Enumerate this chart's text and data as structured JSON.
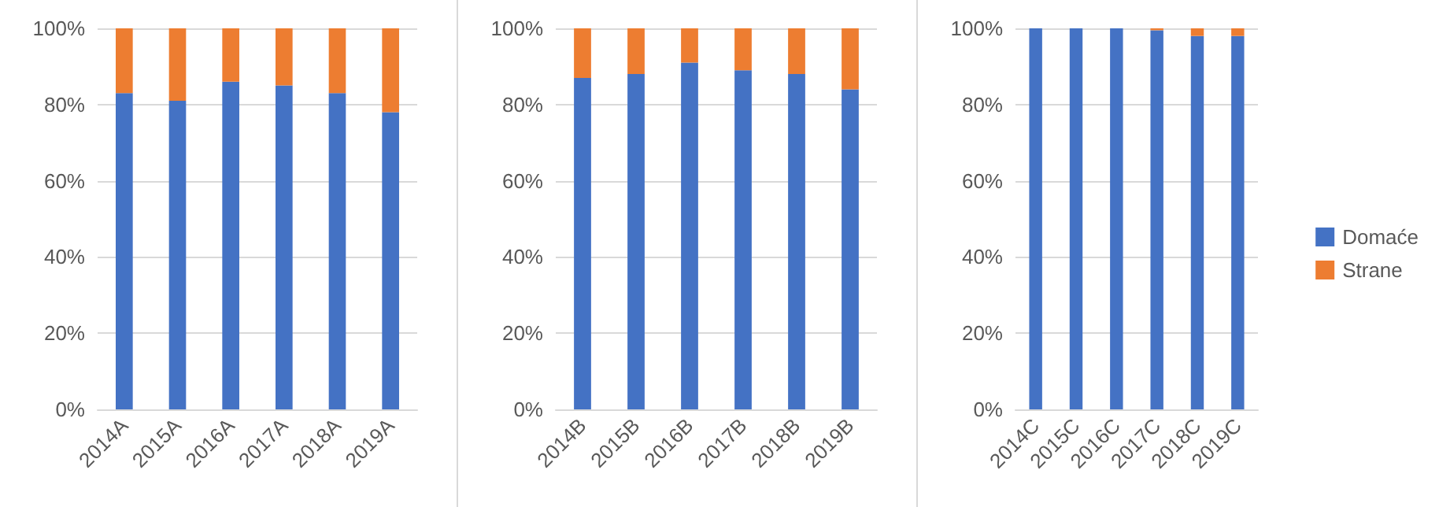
{
  "chart_data": [
    {
      "type": "bar",
      "stacked": true,
      "categories": [
        "2014A",
        "2015A",
        "2016A",
        "2017A",
        "2018A",
        "2019A"
      ],
      "series": [
        {
          "color": "#4472c4",
          "values": [
            83,
            81,
            86,
            85,
            83,
            78
          ]
        },
        {
          "color": "#ed7d31",
          "values": [
            17,
            19,
            14,
            15,
            17,
            22
          ]
        }
      ],
      "ylim": [
        0,
        100
      ],
      "yticks": [
        {
          "value": 0,
          "label": "0%"
        },
        {
          "value": 20,
          "label": "20%"
        },
        {
          "value": 40,
          "label": "40%"
        },
        {
          "value": 60,
          "label": "60%"
        },
        {
          "value": 80,
          "label": "80%"
        },
        {
          "value": 100,
          "label": "100%"
        }
      ],
      "grid": "y",
      "legend": false
    },
    {
      "type": "bar",
      "stacked": true,
      "categories": [
        "2014B",
        "2015B",
        "2016B",
        "2017B",
        "2018B",
        "2019B"
      ],
      "series": [
        {
          "color": "#4472c4",
          "values": [
            87,
            88,
            91,
            89,
            88,
            84
          ]
        },
        {
          "color": "#ed7d31",
          "values": [
            13,
            12,
            9,
            11,
            12,
            16
          ]
        }
      ],
      "ylim": [
        0,
        100
      ],
      "yticks": [
        {
          "value": 0,
          "label": "0%"
        },
        {
          "value": 20,
          "label": "20%"
        },
        {
          "value": 40,
          "label": "40%"
        },
        {
          "value": 60,
          "label": "60%"
        },
        {
          "value": 80,
          "label": "80%"
        },
        {
          "value": 100,
          "label": "100%"
        }
      ],
      "grid": "y",
      "legend": false
    },
    {
      "type": "bar",
      "stacked": true,
      "categories": [
        "2014C",
        "2015C",
        "2016C",
        "2017C",
        "2018C",
        "2019C"
      ],
      "series": [
        {
          "name": "Domaće",
          "color": "#4472c4",
          "values": [
            100,
            100,
            100,
            99.5,
            98,
            98
          ]
        },
        {
          "name": "Strane",
          "color": "#ed7d31",
          "values": [
            0,
            0,
            0,
            0.5,
            2,
            2
          ]
        }
      ],
      "ylim": [
        0,
        100
      ],
      "yticks": [
        {
          "value": 0,
          "label": "0%"
        },
        {
          "value": 20,
          "label": "20%"
        },
        {
          "value": 40,
          "label": "40%"
        },
        {
          "value": 60,
          "label": "60%"
        },
        {
          "value": 80,
          "label": "80%"
        },
        {
          "value": 100,
          "label": "100%"
        }
      ],
      "grid": "y",
      "legend": "right"
    }
  ]
}
